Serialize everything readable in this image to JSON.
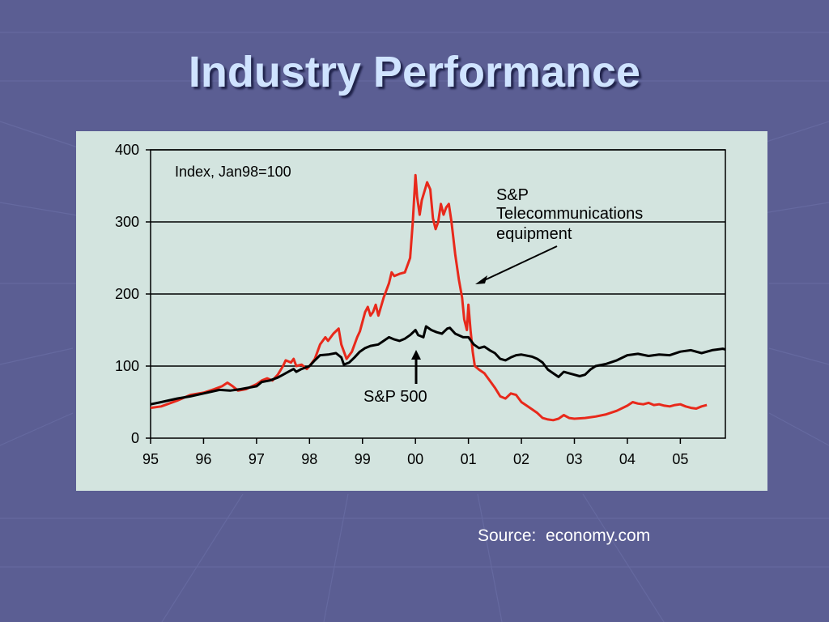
{
  "slide": {
    "title": "Industry Performance",
    "source": "Source:  economy.com"
  },
  "colors": {
    "background": "#5b5e93",
    "title": "#cfe3ff",
    "panel": "#d3e4df",
    "telecom": "#e8291b",
    "sp500": "#000000"
  },
  "chart_data": {
    "type": "line",
    "annotation_index": "Index, Jan98=100",
    "annotation_telecom": [
      "S&P",
      "Telecommunications",
      "equipment"
    ],
    "annotation_sp500": "S&P 500",
    "y_ticks": [
      0,
      100,
      200,
      300,
      400
    ],
    "x_ticks": [
      "95",
      "96",
      "97",
      "98",
      "99",
      "00",
      "01",
      "02",
      "03",
      "04",
      "05"
    ],
    "ylim": [
      0,
      400
    ],
    "xlim": [
      1995.0,
      2005.85
    ],
    "grid": "horizontal",
    "series": [
      {
        "name": "S&P Telecommunications equipment",
        "color": "#e8291b",
        "points": [
          [
            1995.0,
            42
          ],
          [
            1995.2,
            44
          ],
          [
            1995.5,
            52
          ],
          [
            1995.75,
            60
          ],
          [
            1996.0,
            63
          ],
          [
            1996.2,
            68
          ],
          [
            1996.35,
            72
          ],
          [
            1996.45,
            77
          ],
          [
            1996.55,
            72
          ],
          [
            1996.65,
            66
          ],
          [
            1996.8,
            68
          ],
          [
            1997.0,
            75
          ],
          [
            1997.1,
            80
          ],
          [
            1997.2,
            83
          ],
          [
            1997.3,
            80
          ],
          [
            1997.4,
            88
          ],
          [
            1997.5,
            100
          ],
          [
            1997.55,
            108
          ],
          [
            1997.65,
            105
          ],
          [
            1997.7,
            110
          ],
          [
            1997.75,
            100
          ],
          [
            1997.85,
            102
          ],
          [
            1997.95,
            96
          ],
          [
            1998.0,
            100
          ],
          [
            1998.1,
            110
          ],
          [
            1998.2,
            130
          ],
          [
            1998.3,
            140
          ],
          [
            1998.35,
            135
          ],
          [
            1998.45,
            145
          ],
          [
            1998.55,
            152
          ],
          [
            1998.6,
            130
          ],
          [
            1998.7,
            110
          ],
          [
            1998.8,
            120
          ],
          [
            1998.9,
            140
          ],
          [
            1998.95,
            148
          ],
          [
            1999.05,
            175
          ],
          [
            1999.1,
            182
          ],
          [
            1999.15,
            170
          ],
          [
            1999.2,
            175
          ],
          [
            1999.25,
            185
          ],
          [
            1999.3,
            170
          ],
          [
            1999.4,
            195
          ],
          [
            1999.5,
            215
          ],
          [
            1999.55,
            230
          ],
          [
            1999.6,
            225
          ],
          [
            1999.7,
            228
          ],
          [
            1999.8,
            230
          ],
          [
            1999.85,
            240
          ],
          [
            1999.9,
            250
          ],
          [
            1999.95,
            300
          ],
          [
            2000.0,
            365
          ],
          [
            2000.03,
            335
          ],
          [
            2000.08,
            310
          ],
          [
            2000.12,
            330
          ],
          [
            2000.18,
            345
          ],
          [
            2000.22,
            355
          ],
          [
            2000.28,
            345
          ],
          [
            2000.33,
            305
          ],
          [
            2000.38,
            290
          ],
          [
            2000.43,
            300
          ],
          [
            2000.48,
            325
          ],
          [
            2000.53,
            310
          ],
          [
            2000.58,
            320
          ],
          [
            2000.63,
            325
          ],
          [
            2000.68,
            300
          ],
          [
            2000.75,
            255
          ],
          [
            2000.82,
            220
          ],
          [
            2000.88,
            195
          ],
          [
            2000.92,
            165
          ],
          [
            2000.97,
            150
          ],
          [
            2001.0,
            185
          ],
          [
            2001.04,
            150
          ],
          [
            2001.08,
            120
          ],
          [
            2001.12,
            100
          ],
          [
            2001.2,
            95
          ],
          [
            2001.3,
            90
          ],
          [
            2001.4,
            80
          ],
          [
            2001.5,
            70
          ],
          [
            2001.6,
            58
          ],
          [
            2001.7,
            55
          ],
          [
            2001.8,
            62
          ],
          [
            2001.9,
            60
          ],
          [
            2002.0,
            50
          ],
          [
            2002.1,
            45
          ],
          [
            2002.2,
            40
          ],
          [
            2002.3,
            35
          ],
          [
            2002.4,
            28
          ],
          [
            2002.5,
            26
          ],
          [
            2002.6,
            25
          ],
          [
            2002.7,
            27
          ],
          [
            2002.8,
            32
          ],
          [
            2002.9,
            28
          ],
          [
            2003.0,
            27
          ],
          [
            2003.2,
            28
          ],
          [
            2003.4,
            30
          ],
          [
            2003.6,
            33
          ],
          [
            2003.8,
            38
          ],
          [
            2004.0,
            45
          ],
          [
            2004.1,
            50
          ],
          [
            2004.2,
            48
          ],
          [
            2004.3,
            47
          ],
          [
            2004.4,
            49
          ],
          [
            2004.5,
            46
          ],
          [
            2004.6,
            47
          ],
          [
            2004.7,
            45
          ],
          [
            2004.8,
            44
          ],
          [
            2004.9,
            46
          ],
          [
            2005.0,
            47
          ],
          [
            2005.1,
            44
          ],
          [
            2005.2,
            42
          ],
          [
            2005.3,
            41
          ],
          [
            2005.4,
            44
          ],
          [
            2005.5,
            46
          ]
        ]
      },
      {
        "name": "S&P 500",
        "color": "#000000",
        "points": [
          [
            1995.0,
            47
          ],
          [
            1995.2,
            50
          ],
          [
            1995.5,
            55
          ],
          [
            1995.75,
            58
          ],
          [
            1996.0,
            62
          ],
          [
            1996.3,
            67
          ],
          [
            1996.5,
            66
          ],
          [
            1996.7,
            68
          ],
          [
            1997.0,
            72
          ],
          [
            1997.1,
            78
          ],
          [
            1997.25,
            80
          ],
          [
            1997.4,
            84
          ],
          [
            1997.5,
            88
          ],
          [
            1997.6,
            92
          ],
          [
            1997.7,
            96
          ],
          [
            1997.75,
            92
          ],
          [
            1997.85,
            96
          ],
          [
            1998.0,
            100
          ],
          [
            1998.1,
            108
          ],
          [
            1998.2,
            115
          ],
          [
            1998.35,
            116
          ],
          [
            1998.5,
            118
          ],
          [
            1998.6,
            112
          ],
          [
            1998.65,
            102
          ],
          [
            1998.75,
            105
          ],
          [
            1998.85,
            112
          ],
          [
            1998.95,
            120
          ],
          [
            1999.05,
            125
          ],
          [
            1999.15,
            128
          ],
          [
            1999.3,
            130
          ],
          [
            1999.4,
            135
          ],
          [
            1999.5,
            140
          ],
          [
            1999.6,
            137
          ],
          [
            1999.7,
            135
          ],
          [
            1999.8,
            138
          ],
          [
            1999.9,
            143
          ],
          [
            2000.0,
            150
          ],
          [
            2000.05,
            143
          ],
          [
            2000.15,
            140
          ],
          [
            2000.2,
            155
          ],
          [
            2000.3,
            150
          ],
          [
            2000.4,
            147
          ],
          [
            2000.5,
            145
          ],
          [
            2000.6,
            152
          ],
          [
            2000.65,
            153
          ],
          [
            2000.75,
            145
          ],
          [
            2000.9,
            140
          ],
          [
            2001.0,
            140
          ],
          [
            2001.1,
            130
          ],
          [
            2001.2,
            125
          ],
          [
            2001.3,
            127
          ],
          [
            2001.4,
            122
          ],
          [
            2001.5,
            118
          ],
          [
            2001.6,
            110
          ],
          [
            2001.7,
            108
          ],
          [
            2001.8,
            112
          ],
          [
            2001.9,
            115
          ],
          [
            2002.0,
            116
          ],
          [
            2002.2,
            113
          ],
          [
            2002.3,
            110
          ],
          [
            2002.4,
            105
          ],
          [
            2002.5,
            95
          ],
          [
            2002.6,
            90
          ],
          [
            2002.7,
            85
          ],
          [
            2002.8,
            92
          ],
          [
            2002.9,
            90
          ],
          [
            2003.0,
            88
          ],
          [
            2003.1,
            86
          ],
          [
            2003.2,
            88
          ],
          [
            2003.3,
            95
          ],
          [
            2003.4,
            100
          ],
          [
            2003.6,
            103
          ],
          [
            2003.8,
            108
          ],
          [
            2004.0,
            115
          ],
          [
            2004.2,
            117
          ],
          [
            2004.4,
            114
          ],
          [
            2004.6,
            116
          ],
          [
            2004.8,
            115
          ],
          [
            2005.0,
            120
          ],
          [
            2005.2,
            122
          ],
          [
            2005.4,
            118
          ],
          [
            2005.6,
            122
          ],
          [
            2005.8,
            124
          ],
          [
            2005.85,
            123
          ]
        ]
      }
    ]
  }
}
